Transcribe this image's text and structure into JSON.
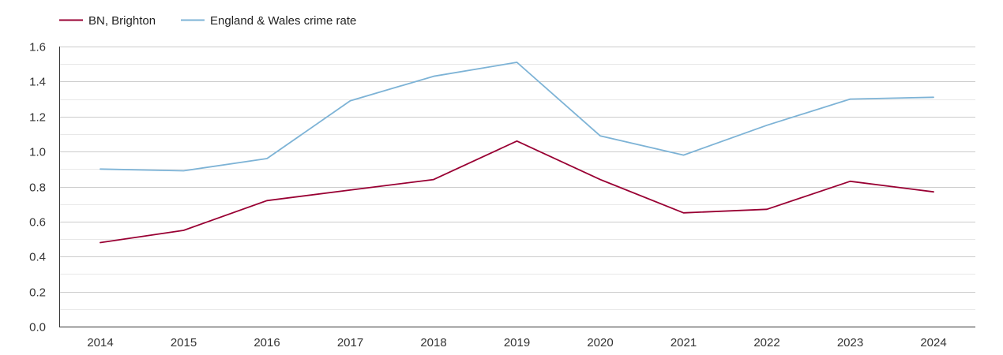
{
  "chart_data": {
    "type": "line",
    "categories": [
      "2014",
      "2015",
      "2016",
      "2017",
      "2018",
      "2019",
      "2020",
      "2021",
      "2022",
      "2023",
      "2024"
    ],
    "series": [
      {
        "name": "BN, Brighton",
        "color": "#990033",
        "values": [
          0.48,
          0.55,
          0.72,
          0.78,
          0.84,
          1.06,
          0.84,
          0.65,
          0.67,
          0.83,
          0.77
        ]
      },
      {
        "name": "England & Wales crime rate",
        "color": "#7db3d6",
        "values": [
          0.9,
          0.89,
          0.96,
          1.29,
          1.43,
          1.51,
          1.09,
          0.98,
          1.15,
          1.3,
          1.31
        ]
      }
    ],
    "ylim": [
      0,
      1.6
    ],
    "yticks": [
      "0.0",
      "0.2",
      "0.4",
      "0.6",
      "0.8",
      "1.0",
      "1.2",
      "1.4",
      "1.6"
    ],
    "grid": true,
    "legend_position": "top-left",
    "colors": {
      "grid_major": "#cccccc",
      "grid_minor": "#e8e8e8",
      "axis": "#333333",
      "text": "#333333"
    }
  }
}
